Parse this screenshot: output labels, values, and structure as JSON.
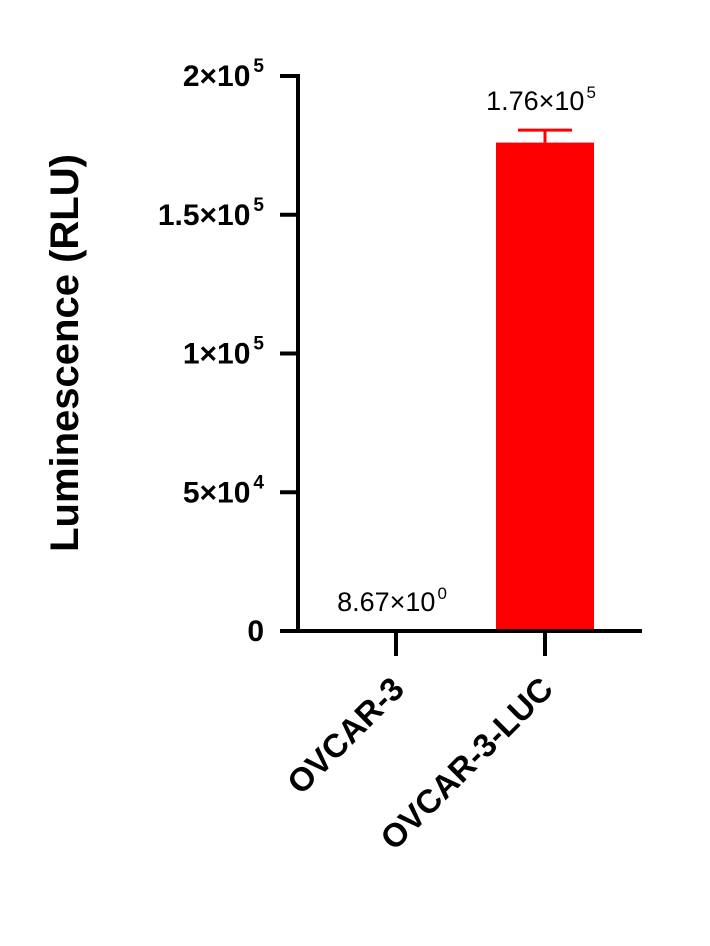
{
  "chart_data": {
    "type": "bar",
    "ylabel": "Luminescence (RLU)",
    "xlabel": "",
    "title": "",
    "categories": [
      "OVCAR-3",
      "OVCAR-3-LUC"
    ],
    "values": [
      8.67,
      176000
    ],
    "errors": [
      0,
      4500
    ],
    "bar_colors": [
      "#ff0000",
      "#ff0000"
    ],
    "ylim": [
      0,
      200000
    ],
    "yticks": [
      {
        "value": 0,
        "label": "0",
        "exp": ""
      },
      {
        "value": 50000,
        "label": "5×10",
        "exp": "4"
      },
      {
        "value": 100000,
        "label": "1×10",
        "exp": "5"
      },
      {
        "value": 150000,
        "label": "1.5×10",
        "exp": "5"
      },
      {
        "value": 200000,
        "label": "2×10",
        "exp": "5"
      }
    ],
    "data_labels": [
      {
        "text": "8.67×10",
        "exp": "0"
      },
      {
        "text": "1.76×10",
        "exp": "5"
      }
    ],
    "grid": false,
    "legend": "none"
  }
}
